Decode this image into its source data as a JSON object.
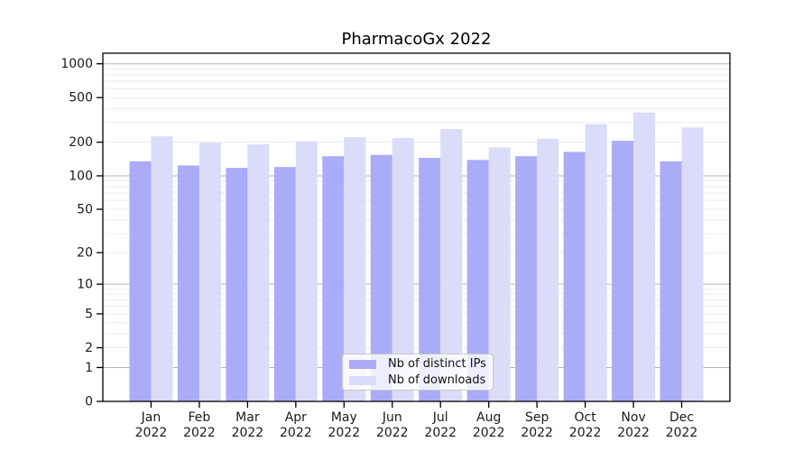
{
  "figure": {
    "title": "PharmacoGx 2022"
  },
  "chart_data": {
    "type": "bar",
    "title": "PharmacoGx 2022",
    "xlabel": "",
    "ylabel": "",
    "categories": [
      "Jan 2022",
      "Feb 2022",
      "Mar 2022",
      "Apr 2022",
      "May 2022",
      "Jun 2022",
      "Jul 2022",
      "Aug 2022",
      "Sep 2022",
      "Oct 2022",
      "Nov 2022",
      "Dec 2022"
    ],
    "series": [
      {
        "name": "Nb of distinct IPs",
        "color": "#ababf7",
        "values": [
          135,
          124,
          118,
          120,
          150,
          154,
          145,
          139,
          150,
          164,
          206,
          135
        ]
      },
      {
        "name": "Nb of downloads",
        "color": "#dbdbfa",
        "values": [
          226,
          198,
          192,
          204,
          222,
          218,
          262,
          180,
          215,
          290,
          368,
          271
        ]
      }
    ],
    "axes": {
      "y_scale": "log1p",
      "ylim": [
        0,
        1240
      ],
      "yticks": [
        1000,
        500,
        200,
        100,
        50,
        20,
        10,
        5,
        2,
        1,
        0
      ],
      "major_gridlines": [
        1,
        10,
        100,
        1000
      ],
      "minor_gridlines": [
        2,
        3,
        4,
        5,
        6,
        7,
        8,
        9,
        20,
        30,
        40,
        50,
        60,
        70,
        80,
        90,
        200,
        300,
        400,
        500,
        600,
        700,
        800,
        900
      ],
      "grid": true,
      "legend_position": "bottom-center-inside"
    },
    "colors": {
      "major_gridline": "#b5b5b5",
      "minor_gridline": "#ebebeb",
      "spine": "#000000",
      "tick_label": "#1a1a1a"
    }
  }
}
